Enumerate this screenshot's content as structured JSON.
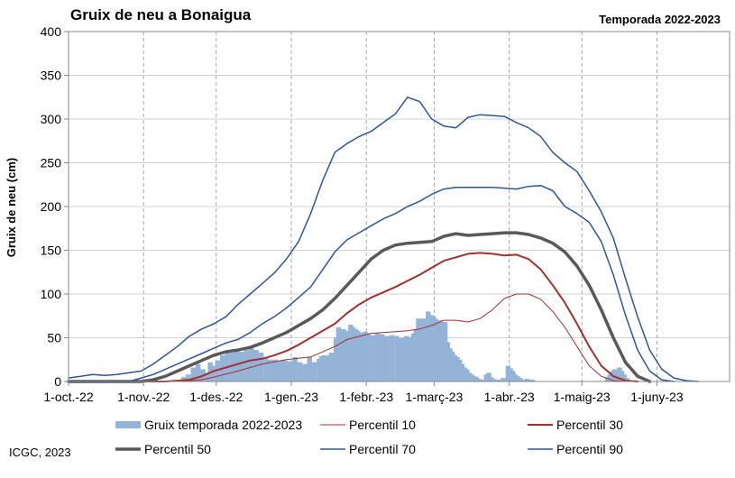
{
  "chart_data": {
    "type": "line",
    "title": "Gruix de neu a Bonaigua",
    "subtitle": "Temporada 2022-2023",
    "ylabel": "Gruix de neu (cm)",
    "xlabel": "",
    "ylim": [
      0,
      400
    ],
    "yticks": [
      "0",
      "50",
      "100",
      "150",
      "200",
      "250",
      "300",
      "350",
      "400"
    ],
    "x_tick_labels": [
      "1-oct.-22",
      "1-nov.-22",
      "1-des.-22",
      "1-gen.-23",
      "1-febr.-23",
      "1-març-23",
      "1-abr.-23",
      "1-maig-23",
      "1-juny-23"
    ],
    "x_tick_day_offsets": [
      0,
      31,
      61,
      92,
      123,
      151,
      182,
      212,
      243
    ],
    "x_range_days": [
      0,
      273
    ],
    "grid": "x-dashed",
    "legend_position": "bottom",
    "series": [
      {
        "name": "Gruix temporada 2022-2023",
        "type": "bar",
        "color": "#95B3D7",
        "x": [
          47,
          49,
          51,
          53,
          55,
          57,
          58,
          59,
          61,
          63,
          65,
          67,
          69,
          71,
          73,
          75,
          77,
          79,
          81,
          83,
          85,
          86,
          88,
          89,
          91,
          93,
          95,
          97,
          99,
          101,
          103,
          104,
          105,
          106,
          107,
          108,
          109,
          110,
          111,
          112,
          113,
          114,
          115,
          116,
          117,
          118,
          119,
          120,
          121,
          122,
          123,
          125,
          127,
          129,
          131,
          133,
          135,
          137,
          139,
          140,
          141,
          142,
          143,
          144,
          145,
          146,
          147,
          148,
          149,
          150,
          151,
          152,
          153,
          154,
          155,
          156,
          157,
          158,
          159,
          160,
          161,
          162,
          163,
          164,
          165,
          166,
          167,
          168,
          169,
          170,
          171,
          172,
          173,
          174,
          175,
          176,
          177,
          179,
          181,
          182,
          183,
          184,
          185,
          186,
          187,
          189,
          191,
          222,
          223,
          224,
          225,
          226,
          227,
          228,
          229,
          230
        ],
        "values": [
          5,
          8,
          16,
          20,
          14,
          10,
          22,
          18,
          24,
          30,
          34,
          33,
          35,
          34,
          36,
          40,
          36,
          33,
          28,
          25,
          25,
          23,
          25,
          24,
          23,
          28,
          22,
          20,
          28,
          22,
          26,
          29,
          30,
          30,
          28,
          33,
          28,
          50,
          62,
          55,
          60,
          52,
          58,
          65,
          62,
          60,
          58,
          55,
          56,
          57,
          55,
          53,
          55,
          54,
          52,
          53,
          52,
          50,
          52,
          50,
          51,
          55,
          60,
          72,
          70,
          72,
          65,
          80,
          76,
          75,
          72,
          68,
          70,
          65,
          68,
          45,
          38,
          34,
          30,
          28,
          25,
          20,
          16,
          14,
          10,
          8,
          6,
          5,
          3,
          2,
          2,
          8,
          10,
          5,
          3,
          2,
          2,
          4,
          18,
          15,
          12,
          8,
          6,
          4,
          2,
          3,
          2,
          5,
          8,
          12,
          14,
          10,
          16,
          12,
          8,
          4
        ]
      },
      {
        "name": "Percentil 10",
        "type": "line",
        "color": "#A0302E",
        "width": 1,
        "x": [
          0,
          45,
          55,
          60,
          70,
          80,
          90,
          100,
          110,
          115,
          125,
          135,
          140,
          145,
          150,
          155,
          160,
          165,
          170,
          175,
          180,
          185,
          190,
          195,
          200,
          205,
          210,
          215,
          220,
          225,
          230
        ],
        "values": [
          0,
          0,
          2,
          5,
          12,
          20,
          25,
          28,
          40,
          48,
          55,
          57,
          58,
          60,
          64,
          70,
          70,
          68,
          72,
          82,
          95,
          100,
          100,
          94,
          80,
          62,
          40,
          18,
          6,
          1,
          0
        ]
      },
      {
        "name": "Percentil 30",
        "type": "line",
        "color": "#A0302E",
        "width": 2,
        "x": [
          0,
          40,
          50,
          55,
          60,
          65,
          70,
          75,
          80,
          85,
          90,
          95,
          100,
          105,
          110,
          115,
          120,
          125,
          130,
          135,
          140,
          145,
          150,
          155,
          160,
          165,
          170,
          175,
          180,
          185,
          190,
          195,
          200,
          205,
          210,
          215,
          220,
          225,
          230,
          235
        ],
        "values": [
          0,
          0,
          2,
          6,
          12,
          16,
          20,
          24,
          26,
          30,
          35,
          42,
          50,
          58,
          66,
          78,
          88,
          96,
          102,
          108,
          115,
          122,
          130,
          138,
          142,
          146,
          147,
          146,
          144,
          145,
          140,
          128,
          110,
          90,
          66,
          40,
          18,
          6,
          1,
          0
        ]
      },
      {
        "name": "Percentil 50",
        "type": "line",
        "color": "#595959",
        "width": 3.5,
        "x": [
          0,
          30,
          35,
          40,
          45,
          50,
          55,
          60,
          65,
          70,
          75,
          80,
          85,
          90,
          95,
          100,
          105,
          110,
          115,
          120,
          125,
          130,
          135,
          140,
          145,
          150,
          155,
          160,
          165,
          170,
          175,
          180,
          185,
          190,
          195,
          200,
          205,
          210,
          215,
          220,
          225,
          230,
          235,
          240
        ],
        "values": [
          0,
          0,
          2,
          6,
          12,
          18,
          24,
          30,
          34,
          36,
          39,
          44,
          50,
          56,
          64,
          72,
          82,
          95,
          110,
          125,
          140,
          150,
          156,
          158,
          159,
          160,
          166,
          169,
          167,
          168,
          169,
          170,
          170,
          168,
          164,
          158,
          148,
          132,
          110,
          82,
          50,
          22,
          6,
          0
        ]
      },
      {
        "name": "Percentil 70",
        "type": "line",
        "color": "#2F5597",
        "width": 1.5,
        "x": [
          0,
          25,
          30,
          35,
          40,
          45,
          50,
          55,
          60,
          65,
          70,
          75,
          80,
          85,
          90,
          95,
          100,
          105,
          110,
          115,
          120,
          125,
          130,
          135,
          140,
          145,
          150,
          155,
          160,
          165,
          170,
          175,
          180,
          185,
          190,
          195,
          200,
          205,
          210,
          215,
          220,
          225,
          230,
          235,
          240,
          245,
          250
        ],
        "values": [
          0,
          0,
          4,
          8,
          14,
          20,
          26,
          32,
          38,
          44,
          48,
          56,
          66,
          74,
          84,
          96,
          108,
          128,
          148,
          162,
          170,
          178,
          186,
          192,
          200,
          206,
          214,
          220,
          222,
          222,
          222,
          222,
          221,
          220,
          223,
          224,
          218,
          200,
          192,
          182,
          160,
          122,
          76,
          36,
          12,
          2,
          0
        ]
      },
      {
        "name": "Percentil 90",
        "type": "line",
        "color": "#2F5597",
        "width": 1.5,
        "x": [
          0,
          5,
          10,
          15,
          20,
          25,
          30,
          35,
          40,
          45,
          50,
          55,
          60,
          65,
          70,
          75,
          80,
          85,
          90,
          95,
          100,
          105,
          110,
          115,
          120,
          125,
          130,
          135,
          140,
          145,
          150,
          155,
          160,
          165,
          170,
          175,
          180,
          185,
          190,
          195,
          200,
          205,
          210,
          215,
          220,
          225,
          230,
          235,
          240,
          245,
          250,
          255,
          260
        ],
        "values": [
          4,
          6,
          8,
          7,
          8,
          10,
          12,
          20,
          30,
          40,
          52,
          60,
          66,
          74,
          88,
          100,
          112,
          124,
          140,
          160,
          192,
          230,
          262,
          272,
          280,
          286,
          296,
          306,
          325,
          320,
          300,
          292,
          290,
          302,
          305,
          304,
          303,
          296,
          290,
          280,
          262,
          250,
          240,
          218,
          194,
          164,
          118,
          74,
          36,
          14,
          4,
          1,
          0
        ]
      }
    ],
    "footer": "ICGC, 2023"
  }
}
